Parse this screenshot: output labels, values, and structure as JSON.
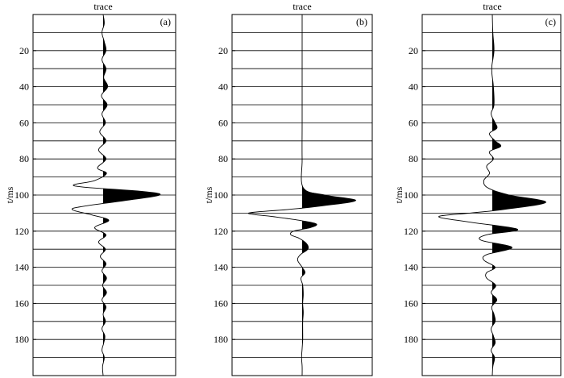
{
  "chart_data": [
    {
      "type": "line",
      "panel_label": "(a)",
      "title": "trace",
      "ylabel": "t/ms",
      "ylim": [
        0,
        200
      ],
      "y_inverted": true,
      "yticks": [
        20,
        40,
        60,
        80,
        100,
        120,
        140,
        160,
        180
      ],
      "gridlines": [
        10,
        20,
        30,
        40,
        50,
        60,
        70,
        80,
        90,
        100,
        110,
        120,
        130,
        140,
        150,
        160,
        170,
        180,
        190
      ],
      "fill": "positive",
      "series": [
        {
          "t": [
            0,
            5,
            10,
            15,
            20,
            25,
            30,
            35,
            40,
            45,
            50,
            55,
            60,
            65,
            70,
            75,
            80,
            85,
            88,
            92,
            95,
            98,
            100,
            103,
            106,
            108,
            111,
            114,
            118,
            122,
            126,
            130,
            134,
            138,
            142,
            146,
            150,
            154,
            158,
            162,
            166,
            170,
            174,
            178,
            182,
            186,
            190,
            195,
            200
          ],
          "amplitude": [
            0,
            0.02,
            -0.02,
            0.02,
            0.05,
            -0.02,
            0.05,
            0.01,
            0.08,
            -0.03,
            0.07,
            -0.02,
            0.04,
            -0.06,
            0.05,
            -0.08,
            0.05,
            -0.1,
            0.06,
            -0.15,
            -0.5,
            0.7,
            1.0,
            0.4,
            -0.3,
            -0.55,
            -0.2,
            0.1,
            -0.15,
            0.05,
            -0.08,
            0.04,
            -0.05,
            0.05,
            -0.02,
            0.06,
            -0.01,
            0.06,
            -0.02,
            0.05,
            0,
            0.04,
            -0.02,
            0.03,
            0.01,
            -0.02,
            0.02,
            -0.01,
            0
          ]
        }
      ]
    },
    {
      "type": "line",
      "panel_label": "(b)",
      "title": "trace",
      "ylabel": "t/ms",
      "ylim": [
        0,
        200
      ],
      "y_inverted": true,
      "yticks": [
        20,
        40,
        60,
        80,
        100,
        120,
        140,
        160,
        180
      ],
      "gridlines": [
        10,
        20,
        30,
        40,
        50,
        60,
        70,
        80,
        90,
        100,
        110,
        120,
        130,
        140,
        150,
        160,
        170,
        180,
        190
      ],
      "fill": "positive",
      "series": [
        {
          "t": [
            0,
            20,
            40,
            60,
            80,
            96,
            100,
            103,
            106,
            108,
            110,
            112,
            114,
            116,
            118,
            120,
            122,
            124,
            127,
            130,
            133,
            136,
            140,
            143,
            146,
            150,
            155,
            160,
            165,
            170,
            175,
            180,
            185,
            190,
            195,
            200
          ],
          "amplitude": [
            0,
            0,
            0,
            0,
            0,
            0.02,
            0.4,
            0.95,
            0.35,
            -0.25,
            -0.95,
            -0.5,
            -0.05,
            0.25,
            0.15,
            -0.15,
            -0.2,
            -0.05,
            0.08,
            0.1,
            -0.03,
            -0.08,
            0,
            0.05,
            -0.02,
            0.01,
            0.02,
            0.01,
            0.02,
            0.01,
            0.01,
            0.01,
            0,
            -0.01,
            0,
            0
          ]
        }
      ]
    },
    {
      "type": "line",
      "panel_label": "(c)",
      "title": "trace",
      "ylabel": "t/ms",
      "ylim": [
        0,
        200
      ],
      "y_inverted": true,
      "yticks": [
        20,
        40,
        60,
        80,
        100,
        120,
        140,
        160,
        180
      ],
      "gridlines": [
        10,
        20,
        30,
        40,
        50,
        60,
        70,
        80,
        90,
        100,
        110,
        120,
        130,
        140,
        150,
        160,
        170,
        180,
        190
      ],
      "fill": "positive",
      "series": [
        {
          "t": [
            0,
            10,
            20,
            30,
            40,
            50,
            55,
            60,
            63,
            66,
            70,
            73,
            76,
            80,
            84,
            88,
            92,
            96,
            100,
            104,
            108,
            110,
            112,
            115,
            119,
            122,
            125,
            129,
            133,
            136,
            140,
            143,
            146,
            150,
            154,
            158,
            162,
            166,
            170,
            174,
            178,
            182,
            186,
            190,
            195,
            200
          ],
          "amplitude": [
            0,
            0.01,
            0.03,
            -0.01,
            0.02,
            0.03,
            -0.02,
            0.05,
            0.08,
            -0.05,
            0.05,
            0.15,
            -0.05,
            0.02,
            -0.1,
            -0.05,
            -0.15,
            -0.08,
            0.3,
            0.95,
            0.2,
            -0.4,
            -0.95,
            -0.4,
            0.45,
            -0.1,
            -0.2,
            0.35,
            -0.1,
            -0.15,
            0.05,
            -0.1,
            -0.1,
            0.06,
            -0.02,
            0.08,
            -0.01,
            0.03,
            0.05,
            -0.02,
            0.02,
            0.05,
            -0.02,
            0.04,
            0.01,
            0
          ]
        }
      ]
    }
  ]
}
